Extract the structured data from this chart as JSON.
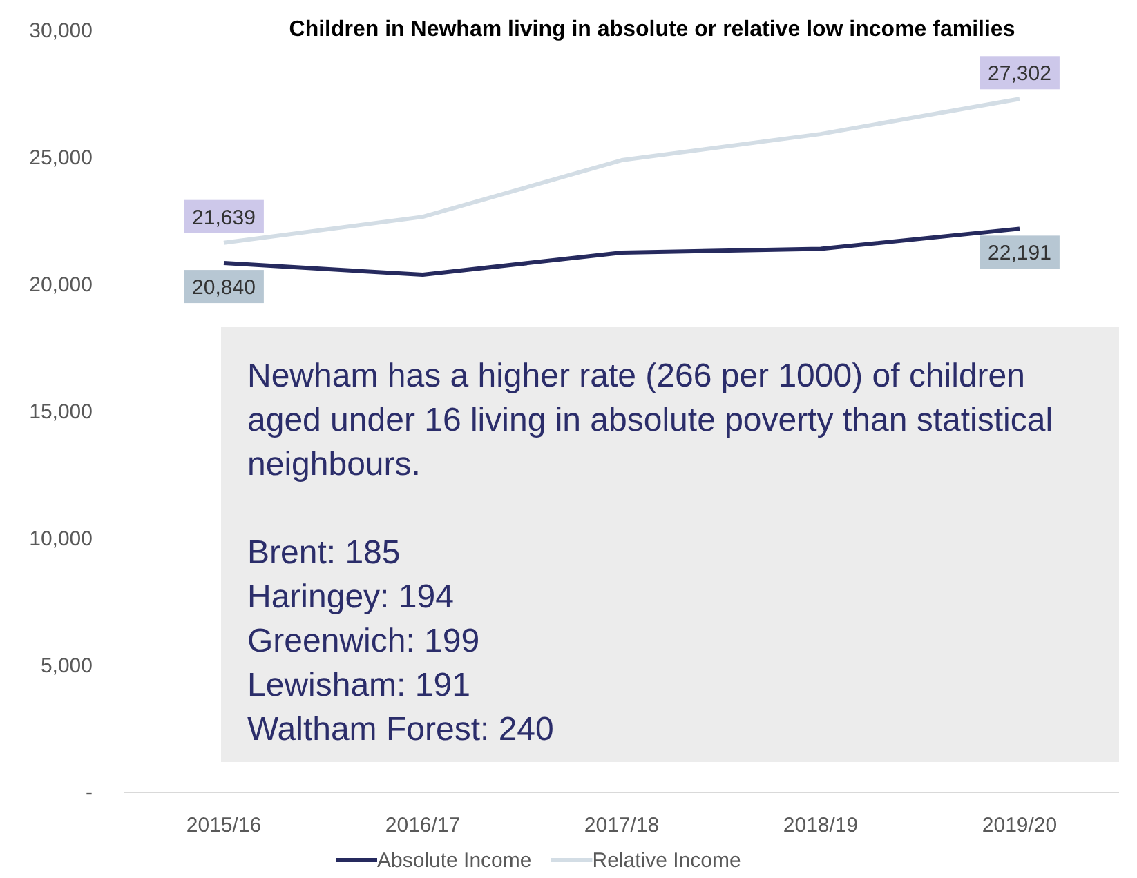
{
  "chart_data": {
    "type": "line",
    "title": "Children in Newham living in absolute or relative low income families",
    "categories": [
      "2015/16",
      "2016/17",
      "2017/18",
      "2018/19",
      "2019/20"
    ],
    "series": [
      {
        "name": "Absolute Income",
        "color": "#262a5e",
        "values": [
          20840,
          20380,
          21250,
          21400,
          22191
        ],
        "value_labels": [
          "20,840",
          null,
          null,
          null,
          "22,191"
        ]
      },
      {
        "name": "Relative Income",
        "color": "#d3dde5",
        "values": [
          21639,
          22660,
          24890,
          25920,
          27302
        ],
        "value_labels": [
          "21,639",
          null,
          null,
          null,
          "27,302"
        ]
      }
    ],
    "ylim": [
      0,
      30000
    ],
    "yticks": [
      {
        "value": 0,
        "label": "-"
      },
      {
        "value": 5000,
        "label": "5,000"
      },
      {
        "value": 10000,
        "label": "10,000"
      },
      {
        "value": 15000,
        "label": "15,000"
      },
      {
        "value": 20000,
        "label": "20,000"
      },
      {
        "value": 25000,
        "label": "25,000"
      },
      {
        "value": 30000,
        "label": "30,000"
      }
    ],
    "legend": "bottom",
    "marker": "none",
    "line_style": "solid",
    "annotations": [
      "Newham has a higher rate (266 per 1000) of children aged under 16 living in absolute poverty than statistical neighbours.",
      "Brent: 185",
      "Haringey: 194",
      "Greenwich: 199",
      "Lewisham: 191",
      "Waltham Forest: 240"
    ]
  }
}
